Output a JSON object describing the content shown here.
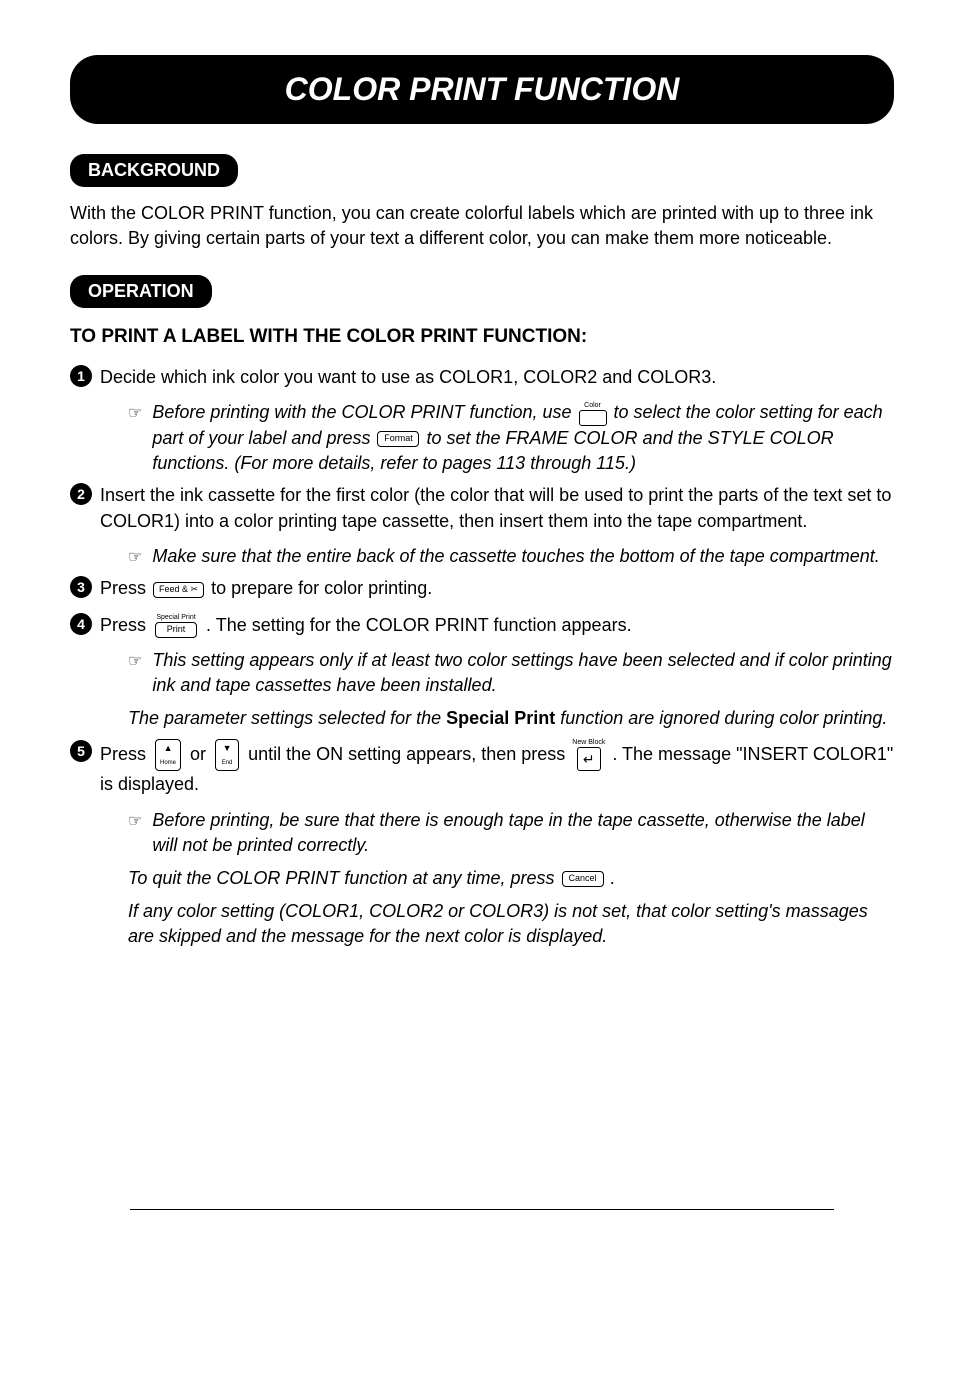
{
  "title": "COLOR PRINT FUNCTION",
  "sections": {
    "background": {
      "label": "BACKGROUND",
      "text": "With the COLOR PRINT function, you can create colorful labels which are printed with up to three ink colors. By giving certain parts of your text a different color, you can make them more noticeable."
    },
    "operation": {
      "label": "OPERATION",
      "heading": "TO PRINT A LABEL WITH THE COLOR PRINT FUNCTION:",
      "steps": {
        "s1": {
          "num": "1",
          "text": "Decide which ink color you want to use as COLOR1, COLOR2 and COLOR3.",
          "note1_a": "Before printing with the COLOR PRINT function, use ",
          "note1_b": " to select the color setting for each part of your label and press ",
          "note1_c": " to set the FRAME COLOR and the STYLE COLOR functions.  (For more details, refer to pages 113 through 115.)"
        },
        "s2": {
          "num": "2",
          "text": "Insert the ink cassette for the first color (the color that will be used to print the parts of the text set to COLOR1) into a color printing tape cassette, then insert them into the tape compartment.",
          "note1": "Make sure that the entire back of the cassette touches the bottom of the tape compartment."
        },
        "s3": {
          "num": "3",
          "text_a": "Press ",
          "text_b": " to prepare for color printing."
        },
        "s4": {
          "num": "4",
          "text_a": "Press ",
          "text_b": ".  The setting for the COLOR PRINT function appears.",
          "note1": "This setting appears only if at least two color settings have been selected and if color printing ink and tape cassettes have been installed.",
          "note2_a": "The parameter settings selected for the ",
          "note2_bold": "Special Print",
          "note2_b": " function are ignored during color printing."
        },
        "s5": {
          "num": "5",
          "text_a": "Press ",
          "text_b": " or ",
          "text_c": " until the ON setting appears, then press ",
          "text_d": ".  The message \"INSERT COLOR1\" is displayed.",
          "note1": "Before printing, be sure that there is enough tape in the tape cassette, otherwise the label will not be printed correctly.",
          "note2_a": "To quit the COLOR PRINT function at any time, press ",
          "note2_b": " .",
          "note3": "If any color setting (COLOR1, COLOR2 or COLOR3) is not set, that color setting's massages are skipped and the message for the next color is displayed."
        }
      }
    }
  },
  "keys": {
    "color_top": "Color",
    "format": "Format",
    "feedcut": "Feed & ✂",
    "print_top": "Special Print",
    "print": "Print",
    "home_top": "▲",
    "home": "Home",
    "end_top": "▼",
    "end": "End",
    "enter_top": "New Block",
    "enter_sym": "↵",
    "cancel": "Cancel"
  },
  "colors": {
    "black": "#000000",
    "white": "#ffffff"
  }
}
